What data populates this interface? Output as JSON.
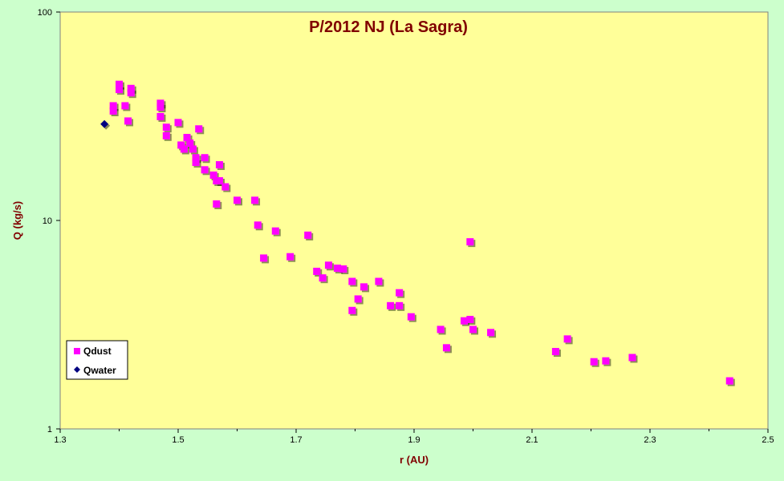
{
  "chart_data": {
    "type": "scatter",
    "title": "P/2012 NJ (La Sagra)",
    "xlabel": "r (AU)",
    "ylabel": "Q (kg/s)",
    "xlim": [
      1.3,
      2.5
    ],
    "ylim": [
      1,
      100
    ],
    "yscale": "log",
    "x_ticks": [
      "1.3",
      "1.5",
      "1.7",
      "1.9",
      "2.1",
      "2.3",
      "2.5"
    ],
    "y_ticks": [
      "1",
      "10",
      "100"
    ],
    "grid": false,
    "legend_position": "bottom-left",
    "plot_background": "#ffff99",
    "page_background": "#ccffcc",
    "series": [
      {
        "name": "Qdust",
        "color": "#ff00ff",
        "marker": "square",
        "points": [
          [
            1.39,
            35.5
          ],
          [
            1.39,
            33.5
          ],
          [
            1.4,
            45.0
          ],
          [
            1.4,
            42.5
          ],
          [
            1.41,
            35.5
          ],
          [
            1.415,
            30.0
          ],
          [
            1.42,
            43.0
          ],
          [
            1.42,
            41.0
          ],
          [
            1.47,
            36.5
          ],
          [
            1.47,
            35.0
          ],
          [
            1.47,
            31.5
          ],
          [
            1.48,
            28.0
          ],
          [
            1.48,
            25.5
          ],
          [
            1.5,
            29.5
          ],
          [
            1.505,
            23.0
          ],
          [
            1.51,
            22.0
          ],
          [
            1.515,
            25.0
          ],
          [
            1.52,
            23.5
          ],
          [
            1.525,
            22.0
          ],
          [
            1.53,
            20.0
          ],
          [
            1.53,
            19.0
          ],
          [
            1.535,
            27.5
          ],
          [
            1.545,
            20.0
          ],
          [
            1.545,
            17.5
          ],
          [
            1.56,
            16.5
          ],
          [
            1.565,
            15.5
          ],
          [
            1.57,
            15.5
          ],
          [
            1.57,
            18.5
          ],
          [
            1.58,
            14.5
          ],
          [
            1.565,
            12.0
          ],
          [
            1.6,
            12.5
          ],
          [
            1.63,
            12.5
          ],
          [
            1.635,
            9.5
          ],
          [
            1.645,
            6.6
          ],
          [
            1.665,
            8.9
          ],
          [
            1.69,
            6.7
          ],
          [
            1.72,
            8.5
          ],
          [
            1.735,
            5.7
          ],
          [
            1.745,
            5.3
          ],
          [
            1.755,
            6.1
          ],
          [
            1.77,
            5.9
          ],
          [
            1.78,
            5.85
          ],
          [
            1.795,
            5.1
          ],
          [
            1.795,
            3.7
          ],
          [
            1.805,
            4.2
          ],
          [
            1.815,
            4.8
          ],
          [
            1.84,
            5.1
          ],
          [
            1.86,
            3.9
          ],
          [
            1.875,
            4.5
          ],
          [
            1.875,
            3.9
          ],
          [
            1.895,
            3.45
          ],
          [
            1.945,
            3.0
          ],
          [
            1.955,
            2.45
          ],
          [
            1.985,
            3.3
          ],
          [
            1.995,
            3.35
          ],
          [
            1.995,
            7.9
          ],
          [
            2.0,
            3.0
          ],
          [
            2.03,
            2.9
          ],
          [
            2.14,
            2.35
          ],
          [
            2.16,
            2.7
          ],
          [
            2.205,
            2.1
          ],
          [
            2.225,
            2.12
          ],
          [
            2.27,
            2.2
          ],
          [
            2.435,
            1.7
          ]
        ]
      },
      {
        "name": "Qwater",
        "color": "#000080",
        "marker": "diamond",
        "points": [
          [
            1.375,
            29.0
          ]
        ]
      }
    ]
  }
}
